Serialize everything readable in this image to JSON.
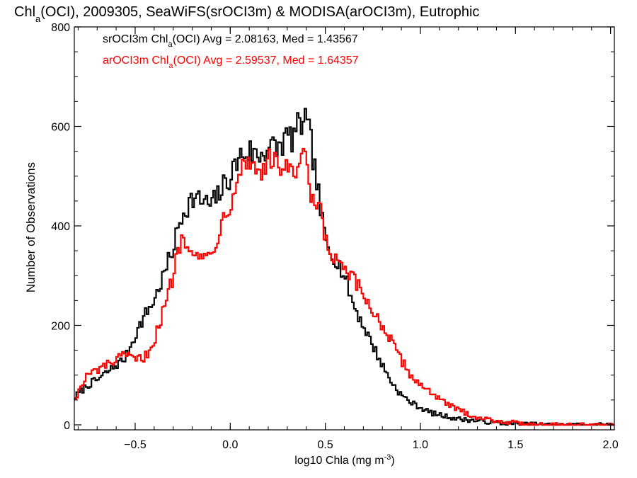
{
  "chart_data": {
    "type": "line",
    "step": true,
    "title_parts": {
      "pre": "Chl",
      "sub": "a",
      "post": "(OCI), 2009305, SeaWiFS(srOCI3m) & MODISA(arOCI3m), Eutrophic"
    },
    "xlabel_parts": {
      "pre": "log10 Chla (mg m",
      "sup": "-3",
      "post": ")"
    },
    "ylabel": "Number of Observations",
    "xlim": [
      -0.82,
      2.02
    ],
    "ylim": [
      -10,
      800
    ],
    "xticks": [
      {
        "value": -0.5,
        "label": "−0.5"
      },
      {
        "value": 0.0,
        "label": "0.0"
      },
      {
        "value": 0.5,
        "label": "0.5"
      },
      {
        "value": 1.0,
        "label": "1.0"
      },
      {
        "value": 1.5,
        "label": "1.5"
      },
      {
        "value": 2.0,
        "label": "2.0"
      }
    ],
    "xminor_step": 0.1,
    "yticks": [
      {
        "value": 0,
        "label": "0"
      },
      {
        "value": 200,
        "label": "200"
      },
      {
        "value": 400,
        "label": "400"
      },
      {
        "value": 600,
        "label": "600"
      },
      {
        "value": 800,
        "label": "800"
      }
    ],
    "yminor_step": 50,
    "bin_width": 0.01,
    "series": [
      {
        "name": "srOCI3m",
        "color": "#000000",
        "legend": {
          "pre": "srOCI3m Chl",
          "sub": "a",
          "post": "(OCI) Avg = 2.08163, Med = 1.43567"
        },
        "x": [
          -0.82,
          -0.75,
          -0.7,
          -0.65,
          -0.6,
          -0.55,
          -0.5,
          -0.45,
          -0.4,
          -0.35,
          -0.3,
          -0.27,
          -0.25,
          -0.22,
          -0.2,
          -0.15,
          -0.1,
          -0.05,
          0.0,
          0.05,
          0.1,
          0.15,
          0.2,
          0.25,
          0.3,
          0.33,
          0.35,
          0.37,
          0.38,
          0.39,
          0.4,
          0.42,
          0.45,
          0.48,
          0.5,
          0.52,
          0.55,
          0.6,
          0.65,
          0.7,
          0.75,
          0.8,
          0.85,
          0.9,
          0.95,
          1.0,
          1.05,
          1.1,
          1.2,
          1.3,
          1.4,
          1.5,
          1.6,
          1.7,
          1.8,
          2.02
        ],
        "y": [
          55,
          80,
          90,
          105,
          120,
          135,
          180,
          220,
          250,
          300,
          355,
          400,
          425,
          445,
          455,
          450,
          440,
          470,
          500,
          540,
          550,
          540,
          560,
          555,
          580,
          575,
          600,
          590,
          615,
          630,
          600,
          580,
          500,
          420,
          370,
          350,
          340,
          300,
          240,
          200,
          160,
          120,
          85,
          60,
          45,
          35,
          25,
          20,
          12,
          8,
          4,
          2,
          1,
          0,
          0,
          0
        ]
      },
      {
        "name": "arOCI3m",
        "color": "#ff0000",
        "legend": {
          "pre": "arOCI3m Chl",
          "sub": "a",
          "post": "(OCI) Avg = 2.59537, Med = 1.64357"
        },
        "x": [
          -0.82,
          -0.75,
          -0.7,
          -0.65,
          -0.6,
          -0.55,
          -0.5,
          -0.45,
          -0.4,
          -0.35,
          -0.3,
          -0.27,
          -0.25,
          -0.22,
          -0.2,
          -0.15,
          -0.1,
          -0.05,
          0.0,
          0.05,
          0.1,
          0.15,
          0.2,
          0.25,
          0.3,
          0.33,
          0.35,
          0.37,
          0.4,
          0.42,
          0.45,
          0.48,
          0.5,
          0.52,
          0.55,
          0.6,
          0.65,
          0.7,
          0.75,
          0.8,
          0.85,
          0.9,
          0.95,
          1.0,
          1.05,
          1.1,
          1.2,
          1.3,
          1.4,
          1.5,
          1.6,
          1.7,
          1.8,
          2.02
        ],
        "y": [
          50,
          100,
          110,
          120,
          130,
          140,
          130,
          135,
          170,
          230,
          300,
          360,
          380,
          370,
          360,
          330,
          345,
          400,
          450,
          520,
          530,
          510,
          530,
          520,
          525,
          490,
          500,
          545,
          520,
          460,
          440,
          420,
          370,
          350,
          330,
          310,
          290,
          260,
          230,
          200,
          165,
          130,
          100,
          80,
          70,
          50,
          30,
          15,
          8,
          4,
          2,
          1,
          0,
          0
        ]
      }
    ]
  }
}
